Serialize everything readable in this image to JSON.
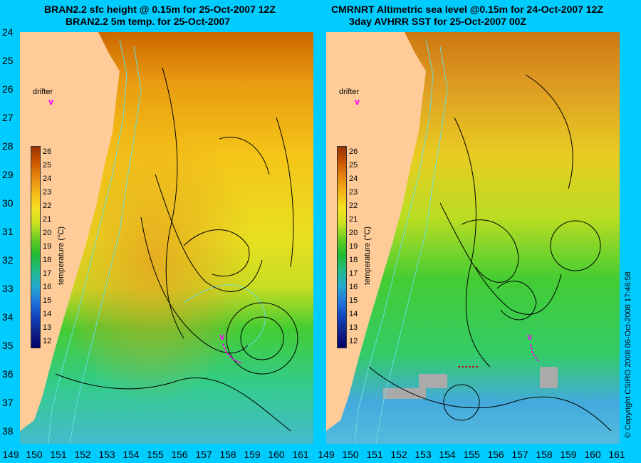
{
  "left_panel": {
    "title_line1": "BRAN2.2 sfc height @ 0.15m for 25-Oct-2007 12Z",
    "title_line2": "BRAN2.2 5m temp. for 25-Oct-2007",
    "drifter_label": "drifter",
    "drifter_marker": "v"
  },
  "right_panel": {
    "title_line1": "CMRNRT Altimetric sea level  @0.15m  for 24-Oct-2007 12Z",
    "title_line2": "3day AVHRR SST for 25-Oct-2007 00Z",
    "drifter_label": "drifter",
    "drifter_marker": "v"
  },
  "y_axis_labels": [
    "24",
    "25",
    "26",
    "27",
    "28",
    "29",
    "30",
    "31",
    "32",
    "33",
    "34",
    "35",
    "36",
    "37",
    "38"
  ],
  "x_axis_labels": [
    "149",
    "150",
    "151",
    "152",
    "153",
    "154",
    "155",
    "156",
    "157",
    "158",
    "159",
    "160",
    "161"
  ],
  "colorbar": {
    "label": "temperature (°C)",
    "ticks": [
      "26",
      "25",
      "24",
      "23",
      "22",
      "21",
      "20",
      "19",
      "18",
      "17",
      "16",
      "15",
      "14",
      "13",
      "12"
    ]
  },
  "copyright": "© Copyright CSIRO 2008    06-Oct-2008 17:46:58",
  "colors": {
    "background": "#00ccff",
    "land": "#ffcc99",
    "drifter": "#ff00ff",
    "contour": "#000000",
    "bathymetry": "#66dddd"
  }
}
